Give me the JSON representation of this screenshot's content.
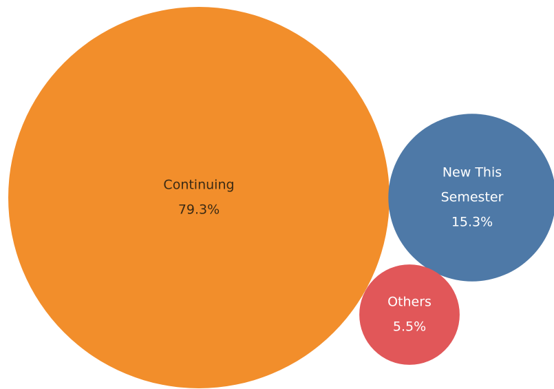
{
  "chart_data": {
    "type": "bubble",
    "title": "",
    "series": [
      {
        "name": "Continuing",
        "value": 79.3,
        "value_label": "79.3%",
        "color": "#F28E2B",
        "text_color": "#3a2a14",
        "label_lines": [
          "Continuing"
        ]
      },
      {
        "name": "New This Semester",
        "value": 15.3,
        "value_label": "15.3%",
        "color": "#4E79A7",
        "text_color": "#ffffff",
        "label_lines": [
          "New This",
          "Semester"
        ]
      },
      {
        "name": "Others",
        "value": 5.5,
        "value_label": "5.5%",
        "color": "#E15759",
        "text_color": "#ffffff",
        "label_lines": [
          "Others"
        ]
      }
    ]
  }
}
